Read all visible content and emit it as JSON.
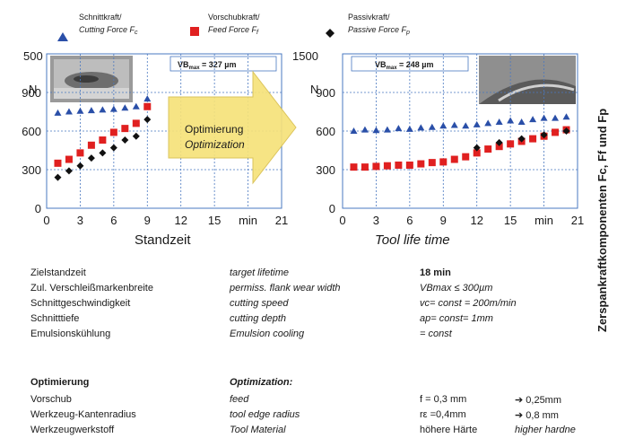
{
  "legend": [
    {
      "name_de": "Schnittkraft/",
      "name_en": "Cutting Force F",
      "sub": "c",
      "color": "#2a4fa8",
      "marker": "triangle"
    },
    {
      "name_de": "Vorschubkraft/",
      "name_en": "Feed Force F",
      "sub": "f",
      "color": "#e02020",
      "marker": "square"
    },
    {
      "name_de": "Passivkraft/",
      "name_en": "Passive Force F",
      "sub": "p",
      "color": "#111111",
      "marker": "diamond"
    }
  ],
  "arrow": {
    "line1": "Optimierung",
    "line2": "Optimization",
    "color": "#f6e27a"
  },
  "right_axis_title": "Zerspankraftkomponenten F",
  "right_axis_title_tail": "c, Ff und Fp",
  "chart_data": [
    {
      "type": "scatter",
      "unit_label": "N",
      "y_top_label": "500",
      "yticks": [
        "900",
        "600",
        "300",
        "0"
      ],
      "xticks": [
        "0",
        "3",
        "6",
        "9",
        "12",
        "15",
        "min",
        "21"
      ],
      "xlabel": "Standzeit",
      "vb_label": "VBmax = 327 µm",
      "vb_main": "VB",
      "vb_sub": "max",
      "vb_value": " = 327 µm",
      "xlim": [
        0,
        21
      ],
      "ylim": [
        0,
        1200
      ],
      "series": [
        {
          "name": "Cutting Force Fc",
          "x": [
            1,
            2,
            3,
            4,
            5,
            6,
            7,
            8,
            9
          ],
          "y": [
            740,
            750,
            755,
            760,
            765,
            770,
            780,
            790,
            850
          ]
        },
        {
          "name": "Feed Force Ff",
          "x": [
            1,
            2,
            3,
            4,
            5,
            6,
            7,
            8,
            9
          ],
          "y": [
            350,
            380,
            430,
            490,
            530,
            590,
            620,
            660,
            790
          ]
        },
        {
          "name": "Passive Force Fp",
          "x": [
            1,
            2,
            3,
            4,
            5,
            6,
            7,
            8,
            9
          ],
          "y": [
            240,
            290,
            330,
            390,
            430,
            470,
            530,
            560,
            690
          ]
        }
      ]
    },
    {
      "type": "scatter",
      "unit_label": "N",
      "y_top_label": "1500",
      "yticks": [
        "900",
        "600",
        "300",
        "0"
      ],
      "xticks": [
        "0",
        "3",
        "6",
        "9",
        "12",
        "15",
        "min",
        "21"
      ],
      "xlabel": "Tool life time",
      "vb_label": "VBmax = 248 µm",
      "vb_main": "VB",
      "vb_sub": "max",
      "vb_value": " = 248 µm",
      "xlim": [
        0,
        21
      ],
      "ylim": [
        0,
        1200
      ],
      "series": [
        {
          "name": "Cutting Force Fc",
          "x": [
            1,
            2,
            3,
            4,
            5,
            6,
            7,
            8,
            9,
            10,
            11,
            12,
            13,
            14,
            15,
            16,
            17,
            18,
            19,
            20
          ],
          "y": [
            600,
            610,
            605,
            610,
            620,
            615,
            625,
            630,
            640,
            645,
            640,
            650,
            660,
            670,
            680,
            670,
            690,
            700,
            700,
            710
          ]
        },
        {
          "name": "Feed Force Ff",
          "x": [
            1,
            2,
            3,
            4,
            5,
            6,
            7,
            8,
            9,
            10,
            11,
            12,
            13,
            14,
            15,
            16,
            17,
            18,
            19,
            20
          ],
          "y": [
            320,
            320,
            325,
            330,
            335,
            335,
            345,
            355,
            360,
            380,
            400,
            430,
            460,
            480,
            500,
            520,
            540,
            560,
            590,
            610
          ]
        },
        {
          "name": "Passive Force Fp",
          "x": [
            12,
            14,
            16,
            18,
            20
          ],
          "y": [
            470,
            510,
            540,
            570,
            600
          ]
        }
      ]
    }
  ],
  "table": {
    "rows": [
      {
        "de": "Zielstandzeit",
        "en": "target lifetime",
        "value": "18 min",
        "value_bold": true,
        "extra": ""
      },
      {
        "de": "Zul. Verschleißmarkenbreite",
        "en": "permiss. flank wear width",
        "value": "VBmax ≤ 300µm",
        "value_bold": false,
        "extra": ""
      },
      {
        "de": "Schnittgeschwindigkeit",
        "en": "cutting speed",
        "value": "vc= const = 200m/min",
        "value_bold": false,
        "extra": ""
      },
      {
        "de": "Schnitttiefe",
        "en": "cutting depth",
        "value": "ap= const= 1mm",
        "value_bold": false,
        "extra": ""
      },
      {
        "de": "Emulsionskühlung",
        "en": "Emulsion cooling",
        "value": "= const",
        "value_bold": false,
        "extra": ""
      }
    ],
    "opt_header_de": "Optimierung",
    "opt_header_en": "Optimization:",
    "opt_rows": [
      {
        "de": "Vorschub",
        "en": "feed",
        "value": "f = 0,3 mm",
        "extra": "➔ 0,25mm"
      },
      {
        "de": "Werkzeug-Kantenradius",
        "en": "tool edge radius",
        "value": "rε =0,4mm",
        "extra": "➔ 0,8 mm"
      },
      {
        "de": "Werkzeugwerkstoff",
        "en": "Tool Material",
        "value": "höhere Härte",
        "extra": "higher hardne"
      }
    ]
  }
}
